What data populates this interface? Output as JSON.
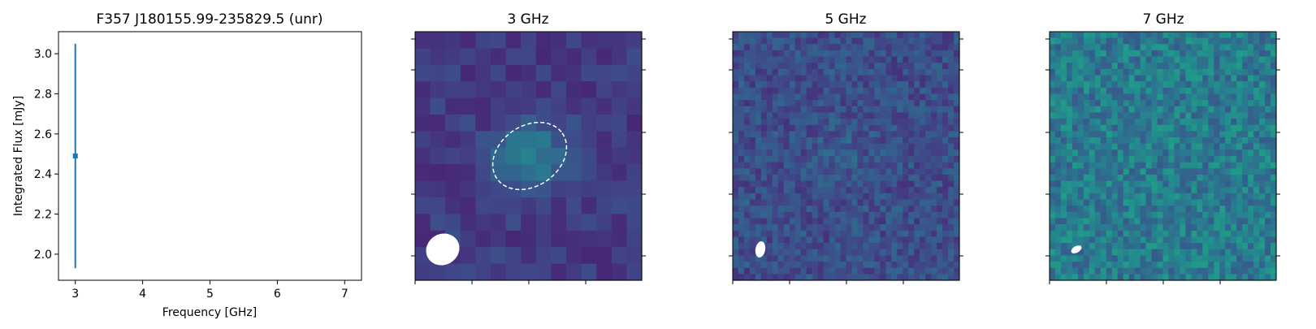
{
  "chart_data": [
    {
      "type": "scatter",
      "title": "F357 J180155.99-235829.5 (unr)",
      "xlabel": "Frequency [GHz]",
      "ylabel": "Integrated Flux [mJy]",
      "xlim": [
        2.75,
        7.25
      ],
      "ylim": [
        1.87,
        3.11
      ],
      "xticks": [
        3,
        4,
        5,
        6,
        7
      ],
      "yticks": [
        2.0,
        2.2,
        2.4,
        2.6,
        2.8,
        3.0
      ],
      "xtick_labels": [
        "3",
        "4",
        "5",
        "6",
        "7"
      ],
      "ytick_labels": [
        "2.0",
        "2.2",
        "2.4",
        "2.6",
        "2.8",
        "3.0"
      ],
      "series": [
        {
          "points": [
            {
              "x": 3.0,
              "y": 2.49,
              "yerr_low": 0.56,
              "yerr_high": 0.56
            }
          ]
        }
      ],
      "color": "#1f77b4",
      "grid": false
    },
    {
      "type": "heatmap",
      "title": "3 GHz",
      "colormap": "viridis",
      "grid_size": 15,
      "source_ellipse": "dashed white",
      "beam": "filled white ellipse, lower-left"
    },
    {
      "type": "heatmap",
      "title": "5 GHz",
      "colormap": "viridis",
      "grid_size": 40,
      "beam": "filled white ellipse, lower-left"
    },
    {
      "type": "heatmap",
      "title": "7 GHz",
      "colormap": "viridis",
      "grid_size": 40,
      "beam": "filled white ellipse, lower-left"
    }
  ]
}
